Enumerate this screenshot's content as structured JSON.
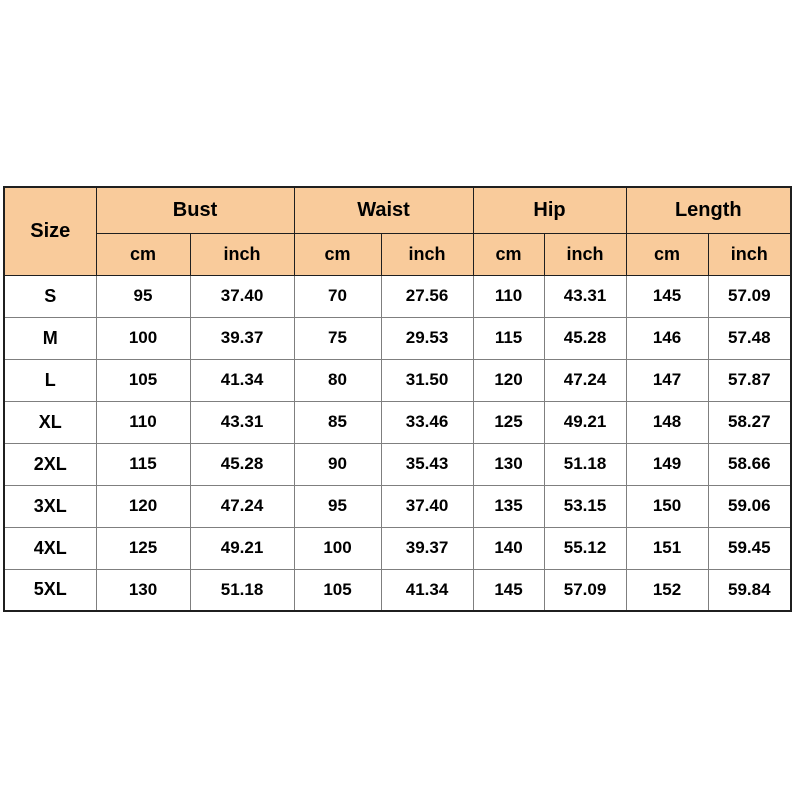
{
  "style": {
    "header_bg": "#f9cb9b",
    "border_dark": "#1f1f1f",
    "border_light": "#7f7f7f",
    "page_bg": "#ffffff"
  },
  "chart_data": {
    "type": "table",
    "size_column_label": "Size",
    "measure_groups": [
      {
        "label": "Bust"
      },
      {
        "label": "Waist"
      },
      {
        "label": "Hip"
      },
      {
        "label": "Length"
      }
    ],
    "unit_labels": [
      "cm",
      "inch"
    ],
    "rows": [
      {
        "size": "S",
        "values": [
          "95",
          "37.40",
          "70",
          "27.56",
          "110",
          "43.31",
          "145",
          "57.09"
        ]
      },
      {
        "size": "M",
        "values": [
          "100",
          "39.37",
          "75",
          "29.53",
          "115",
          "45.28",
          "146",
          "57.48"
        ]
      },
      {
        "size": "L",
        "values": [
          "105",
          "41.34",
          "80",
          "31.50",
          "120",
          "47.24",
          "147",
          "57.87"
        ]
      },
      {
        "size": "XL",
        "values": [
          "110",
          "43.31",
          "85",
          "33.46",
          "125",
          "49.21",
          "148",
          "58.27"
        ]
      },
      {
        "size": "2XL",
        "values": [
          "115",
          "45.28",
          "90",
          "35.43",
          "130",
          "51.18",
          "149",
          "58.66"
        ]
      },
      {
        "size": "3XL",
        "values": [
          "120",
          "47.24",
          "95",
          "37.40",
          "135",
          "53.15",
          "150",
          "59.06"
        ]
      },
      {
        "size": "4XL",
        "values": [
          "125",
          "49.21",
          "100",
          "39.37",
          "140",
          "55.12",
          "151",
          "59.45"
        ]
      },
      {
        "size": "5XL",
        "values": [
          "130",
          "51.18",
          "105",
          "41.34",
          "145",
          "57.09",
          "152",
          "59.84"
        ]
      }
    ]
  }
}
